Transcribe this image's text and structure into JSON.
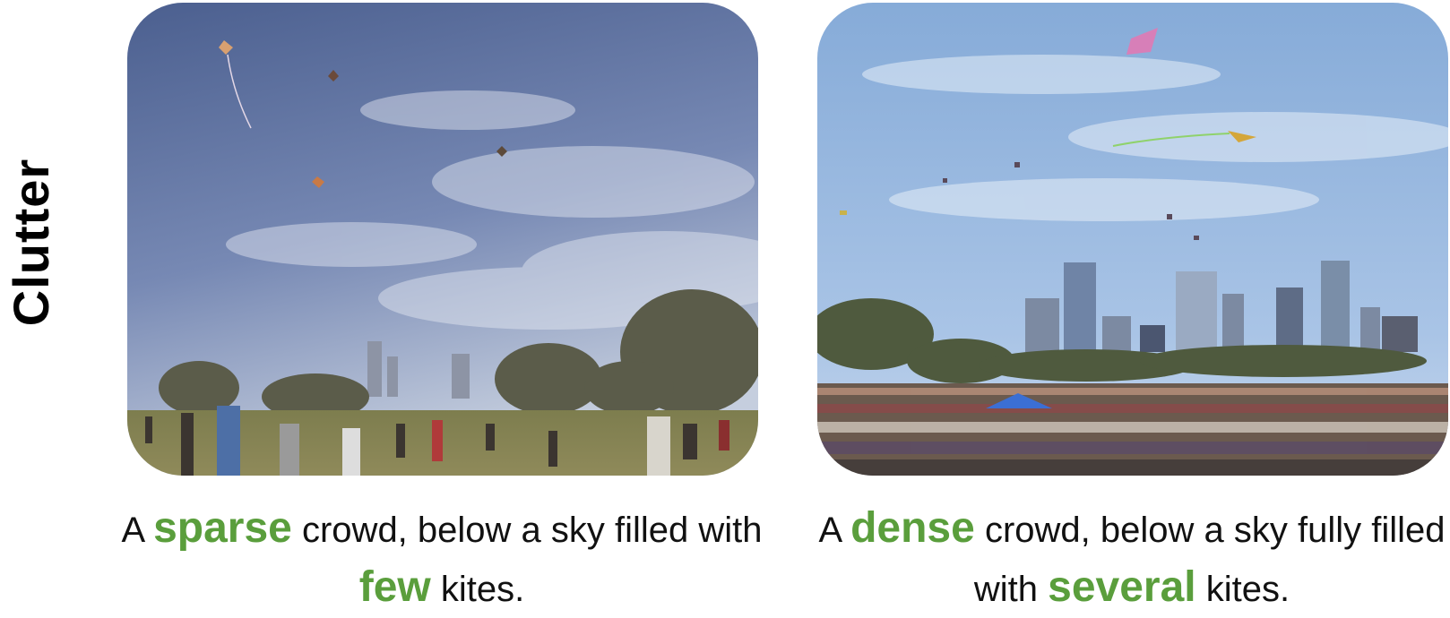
{
  "side_label": "Clutter",
  "panels": [
    {
      "caption": {
        "pre": "A",
        "highlight1": "sparse",
        "mid": "crowd, below a sky filled with",
        "highlight2": "few",
        "post": "kites."
      }
    },
    {
      "caption": {
        "pre": "A",
        "highlight1": "dense",
        "mid": "crowd, below a sky fully filled with",
        "highlight2": "several",
        "post": "kites."
      }
    }
  ],
  "colors": {
    "highlight": "#5a9e3c",
    "sky_left": "#5a6f9e",
    "sky_right": "#8fb4e0",
    "grass": "#8a8a55"
  }
}
